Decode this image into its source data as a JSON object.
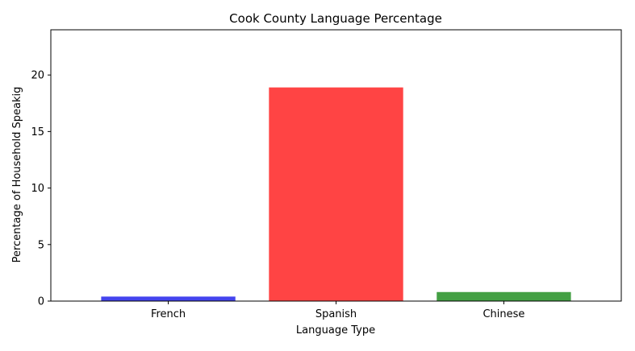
{
  "chart_data": {
    "type": "bar",
    "title": "Cook County Language Percentage",
    "xlabel": "Language Type",
    "ylabel": "Percentage of Household Speakig",
    "categories": [
      "French",
      "Spanish",
      "Chinese"
    ],
    "values": [
      0.4,
      18.9,
      0.8
    ],
    "colors": [
      "#4444ee",
      "#ff4444",
      "#44a044"
    ],
    "ylim": [
      0,
      24
    ],
    "yticks": [
      0,
      5,
      10,
      15,
      20
    ],
    "grid": false,
    "legend": "none"
  }
}
